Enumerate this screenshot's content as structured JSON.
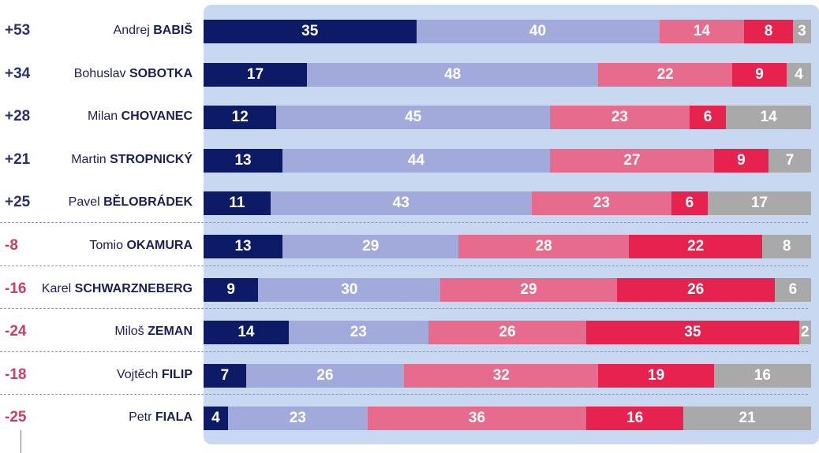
{
  "chart_data": {
    "type": "bar",
    "orientation": "horizontal",
    "stacked": true,
    "series_colors": [
      "#0d1a66",
      "#a2aadb",
      "#e76b8c",
      "#e6224e",
      "#a9a9a9"
    ],
    "rows": [
      {
        "net": "+53",
        "first": "Andrej",
        "last": "BABIŠ",
        "values": [
          35,
          40,
          14,
          8,
          3
        ]
      },
      {
        "net": "+34",
        "first": "Bohuslav",
        "last": "SOBOTKA",
        "values": [
          17,
          48,
          22,
          9,
          4
        ]
      },
      {
        "net": "+28",
        "first": "Milan",
        "last": "CHOVANEC",
        "values": [
          12,
          45,
          23,
          6,
          14
        ]
      },
      {
        "net": "+21",
        "first": "Martin",
        "last": "STROPNICKÝ",
        "values": [
          13,
          44,
          27,
          9,
          7
        ]
      },
      {
        "net": "+25",
        "first": "Pavel",
        "last": "BĚLOBRÁDEK",
        "values": [
          11,
          43,
          23,
          6,
          17
        ]
      },
      {
        "net": "-8",
        "first": "Tomio",
        "last": "OKAMURA",
        "values": [
          13,
          29,
          28,
          22,
          8
        ]
      },
      {
        "net": "-16",
        "first": "Karel",
        "last": "SCHWARZNEBERG",
        "values": [
          9,
          30,
          29,
          26,
          6
        ]
      },
      {
        "net": "-24",
        "first": "Miloš",
        "last": "ZEMAN",
        "values": [
          14,
          23,
          26,
          35,
          2
        ]
      },
      {
        "net": "-18",
        "first": "Vojtěch",
        "last": "FILIP",
        "values": [
          7,
          26,
          32,
          19,
          16
        ]
      },
      {
        "net": "-25",
        "first": "Petr",
        "last": "FIALA",
        "values": [
          4,
          23,
          36,
          16,
          21
        ]
      }
    ]
  }
}
